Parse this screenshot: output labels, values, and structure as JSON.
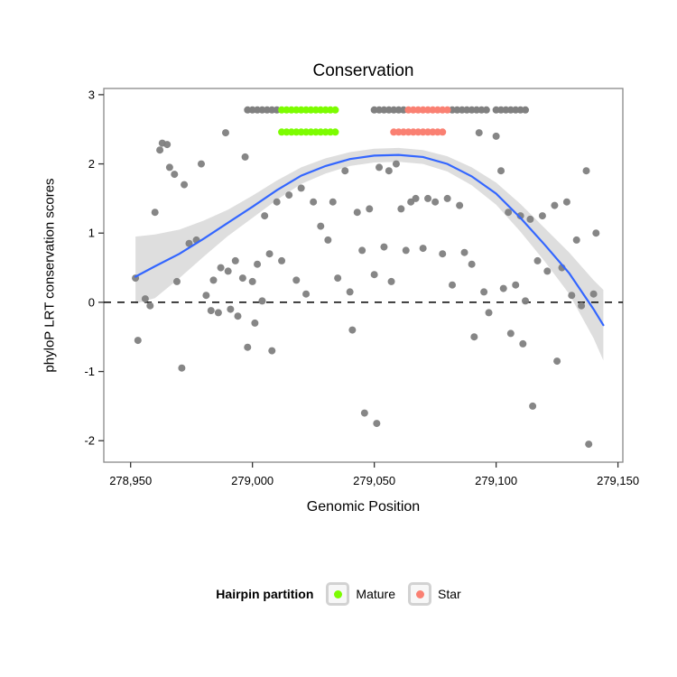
{
  "chart_data": {
    "type": "scatter",
    "title": "Conservation",
    "xlabel": "Genomic Position",
    "ylabel": "phyloP LRT conservation scores",
    "xlim": [
      278939,
      279152
    ],
    "ylim": [
      -2.31,
      3.09
    ],
    "x_ticks": {
      "values": [
        278950,
        279000,
        279050,
        279100,
        279150
      ],
      "labels": [
        "278,950",
        "279,000",
        "279,050",
        "279,100",
        "279,150"
      ]
    },
    "y_ticks": {
      "values": [
        -2,
        -1,
        0,
        1,
        2,
        3
      ],
      "labels": [
        "-2",
        "-1",
        "0",
        "1",
        "2",
        "3"
      ]
    },
    "hline": {
      "y": 0,
      "style": "dashed",
      "color": "#000000"
    },
    "colors": {
      "point": "#808080",
      "smooth_line": "#3366FF",
      "ribbon": "#999999",
      "mature": "#7CFC00",
      "star": "#FA8072",
      "panel_border": "#898989",
      "tick": "#333333"
    },
    "points": [
      [
        278952,
        0.35
      ],
      [
        278953,
        -0.55
      ],
      [
        278956,
        0.05
      ],
      [
        278958,
        -0.05
      ],
      [
        278960,
        1.3
      ],
      [
        278962,
        2.2
      ],
      [
        278963,
        2.3
      ],
      [
        278965,
        2.28
      ],
      [
        278966,
        1.95
      ],
      [
        278968,
        1.85
      ],
      [
        278969,
        0.3
      ],
      [
        278971,
        -0.95
      ],
      [
        278972,
        1.7
      ],
      [
        278974,
        0.85
      ],
      [
        278977,
        0.9
      ],
      [
        278979,
        2.0
      ],
      [
        278981,
        0.1
      ],
      [
        278983,
        -0.12
      ],
      [
        278984,
        0.32
      ],
      [
        278986,
        -0.15
      ],
      [
        278987,
        0.5
      ],
      [
        278989,
        2.45
      ],
      [
        278990,
        0.45
      ],
      [
        278991,
        -0.1
      ],
      [
        278993,
        0.6
      ],
      [
        278994,
        -0.2
      ],
      [
        278996,
        0.35
      ],
      [
        278997,
        2.1
      ],
      [
        278998,
        -0.65
      ],
      [
        279000,
        0.3
      ],
      [
        279001,
        -0.3
      ],
      [
        279002,
        0.55
      ],
      [
        279004,
        0.02
      ],
      [
        279005,
        1.25
      ],
      [
        279007,
        0.7
      ],
      [
        279008,
        -0.7
      ],
      [
        279010,
        1.45
      ],
      [
        279012,
        0.6
      ],
      [
        279015,
        1.55
      ],
      [
        279018,
        0.32
      ],
      [
        279020,
        1.65
      ],
      [
        279022,
        0.12
      ],
      [
        279025,
        1.45
      ],
      [
        279028,
        1.1
      ],
      [
        279031,
        0.9
      ],
      [
        279033,
        1.45
      ],
      [
        279035,
        0.35
      ],
      [
        279038,
        1.9
      ],
      [
        279040,
        0.15
      ],
      [
        279041,
        -0.4
      ],
      [
        279043,
        1.3
      ],
      [
        279045,
        0.75
      ],
      [
        279046,
        -1.6
      ],
      [
        279048,
        1.35
      ],
      [
        279050,
        0.4
      ],
      [
        279051,
        -1.75
      ],
      [
        279052,
        1.95
      ],
      [
        279054,
        0.8
      ],
      [
        279056,
        1.9
      ],
      [
        279057,
        0.3
      ],
      [
        279059,
        2.0
      ],
      [
        279061,
        1.35
      ],
      [
        279063,
        0.75
      ],
      [
        279065,
        1.45
      ],
      [
        279067,
        1.5
      ],
      [
        279070,
        0.78
      ],
      [
        279072,
        1.5
      ],
      [
        279075,
        1.45
      ],
      [
        279078,
        0.7
      ],
      [
        279080,
        1.5
      ],
      [
        279082,
        0.25
      ],
      [
        279085,
        1.4
      ],
      [
        279087,
        0.72
      ],
      [
        279090,
        0.55
      ],
      [
        279091,
        -0.5
      ],
      [
        279093,
        2.45
      ],
      [
        279095,
        0.15
      ],
      [
        279097,
        -0.15
      ],
      [
        279100,
        2.4
      ],
      [
        279102,
        1.9
      ],
      [
        279103,
        0.2
      ],
      [
        279105,
        1.3
      ],
      [
        279106,
        -0.45
      ],
      [
        279108,
        0.25
      ],
      [
        279110,
        1.25
      ],
      [
        279111,
        -0.6
      ],
      [
        279112,
        0.02
      ],
      [
        279114,
        1.2
      ],
      [
        279115,
        -1.5
      ],
      [
        279117,
        0.6
      ],
      [
        279119,
        1.25
      ],
      [
        279121,
        0.45
      ],
      [
        279124,
        1.4
      ],
      [
        279125,
        -0.85
      ],
      [
        279127,
        0.5
      ],
      [
        279129,
        1.45
      ],
      [
        279131,
        0.1
      ],
      [
        279133,
        0.9
      ],
      [
        279135,
        -0.05
      ],
      [
        279137,
        1.9
      ],
      [
        279138,
        -2.05
      ],
      [
        279140,
        0.12
      ],
      [
        279141,
        1.0
      ]
    ],
    "annotation_rows": {
      "marker_y_upper": 2.78,
      "marker_y_lower": 2.46,
      "precursor_upper": [
        278998,
        279000,
        279002,
        279004,
        279006,
        279008,
        279010,
        279050,
        279052,
        279054,
        279056,
        279058,
        279060,
        279062,
        279082,
        279084,
        279086,
        279088,
        279090,
        279092,
        279094,
        279096,
        279100,
        279102,
        279104,
        279106,
        279108,
        279110,
        279112
      ],
      "mature_upper": [
        279012,
        279014,
        279016,
        279018,
        279020,
        279022,
        279024,
        279026,
        279028,
        279030,
        279032,
        279034
      ],
      "mature_lower": [
        279012,
        279014,
        279016,
        279018,
        279020,
        279022,
        279024,
        279026,
        279028,
        279030,
        279032,
        279034
      ],
      "star_upper": [
        279064,
        279066,
        279068,
        279070,
        279072,
        279074,
        279076,
        279078,
        279080
      ],
      "star_lower": [
        279058,
        279060,
        279062,
        279064,
        279066,
        279068,
        279070,
        279072,
        279074,
        279076,
        279078
      ]
    },
    "smooth": {
      "x": [
        278952,
        278960,
        278970,
        278980,
        278990,
        279000,
        279010,
        279020,
        279030,
        279040,
        279050,
        279060,
        279070,
        279080,
        279090,
        279100,
        279110,
        279120,
        279130,
        279140,
        279144
      ],
      "y": [
        0.37,
        0.52,
        0.7,
        0.92,
        1.15,
        1.38,
        1.62,
        1.83,
        1.97,
        2.07,
        2.12,
        2.13,
        2.1,
        2.0,
        1.82,
        1.57,
        1.22,
        0.83,
        0.42,
        -0.1,
        -0.33
      ],
      "upper": [
        0.95,
        0.98,
        1.05,
        1.18,
        1.34,
        1.54,
        1.76,
        1.95,
        2.08,
        2.17,
        2.22,
        2.23,
        2.2,
        2.11,
        1.95,
        1.73,
        1.42,
        1.07,
        0.72,
        0.32,
        0.18
      ],
      "lower": [
        -0.02,
        0.06,
        0.35,
        0.66,
        0.96,
        1.22,
        1.48,
        1.71,
        1.86,
        1.97,
        2.02,
        2.03,
        2.0,
        1.89,
        1.69,
        1.41,
        1.02,
        0.59,
        0.12,
        -0.52,
        -0.84
      ]
    },
    "legend": {
      "title": "Hairpin partition",
      "items": [
        {
          "label": "Mature",
          "color": "#7CFC00"
        },
        {
          "label": "Star",
          "color": "#FA8072"
        }
      ]
    }
  }
}
